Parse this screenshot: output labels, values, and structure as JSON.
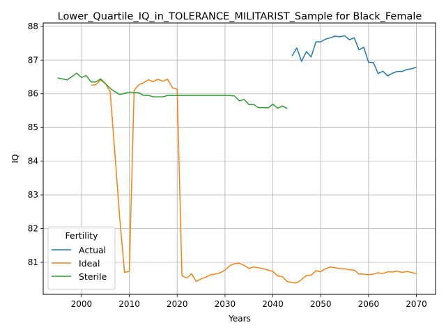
{
  "chart_data": {
    "type": "line",
    "title": "Lower_Quartile_IQ_in_TOLERANCE_MILITARIST_Sample for Black_Female",
    "xlabel": "Years",
    "ylabel": "IQ",
    "xlim": [
      1992,
      2074
    ],
    "ylim": [
      80.05,
      88.1
    ],
    "xticks": [
      2000,
      2010,
      2020,
      2030,
      2040,
      2050,
      2060,
      2070
    ],
    "yticks": [
      81,
      82,
      83,
      84,
      85,
      86,
      87,
      88
    ],
    "grid": true,
    "legend": {
      "title": "Fertility",
      "position": "lower-left"
    },
    "series": [
      {
        "name": "Actual",
        "color": "#1f77b4",
        "x": [
          2044,
          2045,
          2046,
          2047,
          2048,
          2049,
          2050,
          2051,
          2052,
          2053,
          2054,
          2055,
          2056,
          2057,
          2058,
          2059,
          2060,
          2061,
          2062,
          2063,
          2064,
          2065,
          2066,
          2067,
          2068,
          2069,
          2070
        ],
        "y": [
          87.12,
          87.36,
          86.96,
          87.25,
          87.09,
          87.54,
          87.54,
          87.62,
          87.66,
          87.71,
          87.69,
          87.72,
          87.6,
          87.66,
          87.3,
          87.38,
          86.93,
          86.93,
          86.6,
          86.67,
          86.53,
          86.61,
          86.66,
          86.66,
          86.72,
          86.74,
          86.79
        ]
      },
      {
        "name": "Ideal",
        "color": "#ff7f0e",
        "x": [
          2002,
          2003,
          2004,
          2005,
          2006,
          2007,
          2008,
          2009,
          2010,
          2011,
          2012,
          2013,
          2014,
          2015,
          2016,
          2017,
          2018,
          2019,
          2020,
          2021,
          2022,
          2023,
          2024,
          2025,
          2026,
          2027,
          2028,
          2029,
          2030,
          2031,
          2032,
          2033,
          2034,
          2035,
          2036,
          2037,
          2038,
          2039,
          2040,
          2041,
          2042,
          2043,
          2044,
          2045,
          2046,
          2047,
          2048,
          2049,
          2050,
          2051,
          2052,
          2053,
          2054,
          2055,
          2056,
          2057,
          2058,
          2059,
          2060,
          2061,
          2062,
          2063,
          2064,
          2065,
          2066,
          2067,
          2068,
          2069,
          2070
        ],
        "y": [
          86.25,
          86.27,
          86.41,
          86.3,
          86.06,
          84.2,
          82.3,
          80.7,
          80.73,
          86.1,
          86.27,
          86.33,
          86.41,
          86.36,
          86.43,
          86.37,
          86.43,
          86.18,
          86.13,
          80.6,
          80.53,
          80.66,
          80.43,
          80.51,
          80.56,
          80.63,
          80.65,
          80.69,
          80.77,
          80.9,
          80.96,
          80.97,
          80.91,
          80.82,
          80.86,
          80.84,
          80.81,
          80.77,
          80.73,
          80.6,
          80.57,
          80.43,
          80.4,
          80.39,
          80.49,
          80.61,
          80.62,
          80.75,
          80.72,
          80.81,
          80.86,
          80.84,
          80.81,
          80.81,
          80.78,
          80.77,
          80.65,
          80.65,
          80.63,
          80.65,
          80.69,
          80.67,
          80.72,
          80.71,
          80.74,
          80.7,
          80.73,
          80.7,
          80.66
        ]
      },
      {
        "name": "Sterile",
        "color": "#2ca02c",
        "x": [
          1995,
          1996,
          1997,
          1998,
          1999,
          2000,
          2001,
          2002,
          2003,
          2004,
          2005,
          2006,
          2007,
          2008,
          2009,
          2010,
          2011,
          2012,
          2013,
          2014,
          2015,
          2016,
          2017,
          2018,
          2019,
          2020,
          2021,
          2022,
          2023,
          2024,
          2025,
          2026,
          2027,
          2028,
          2029,
          2030,
          2031,
          2032,
          2033,
          2034,
          2035,
          2036,
          2037,
          2038,
          2039,
          2040,
          2041,
          2042,
          2043
        ],
        "y": [
          86.47,
          86.44,
          86.41,
          86.51,
          86.61,
          86.48,
          86.54,
          86.35,
          86.35,
          86.44,
          86.3,
          86.16,
          86.06,
          85.98,
          86.01,
          86.05,
          86.04,
          86.03,
          85.95,
          85.95,
          85.91,
          85.91,
          85.91,
          85.95,
          85.95,
          85.95,
          85.95,
          85.95,
          85.95,
          85.95,
          85.95,
          85.95,
          85.95,
          85.95,
          85.95,
          85.95,
          85.95,
          85.93,
          85.79,
          85.83,
          85.68,
          85.68,
          85.59,
          85.59,
          85.58,
          85.69,
          85.57,
          85.64,
          85.56
        ]
      }
    ]
  }
}
